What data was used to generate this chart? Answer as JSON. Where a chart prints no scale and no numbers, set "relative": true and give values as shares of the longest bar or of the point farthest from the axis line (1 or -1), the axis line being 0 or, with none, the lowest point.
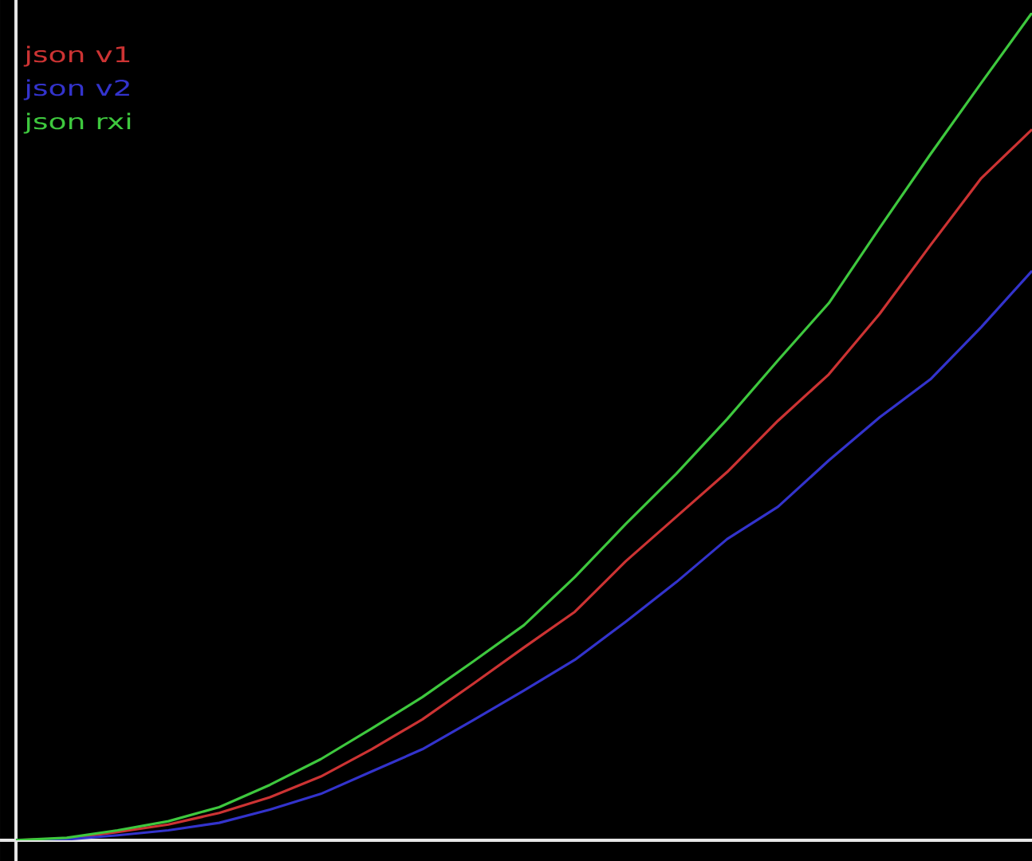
{
  "chart_data": {
    "type": "line",
    "relative": true,
    "legend": "top left",
    "categories": [
      null,
      null,
      null,
      null,
      null,
      null,
      null,
      null,
      null,
      null,
      null,
      null,
      null,
      null,
      null,
      null,
      null,
      null,
      null,
      null,
      null
    ],
    "series": [
      {
        "name": "json v1",
        "color": "#cc3333",
        "values": [
          0,
          0.002,
          0.01,
          0.019,
          0.033,
          0.052,
          0.077,
          0.11,
          0.146,
          0.189,
          0.233,
          0.276,
          0.337,
          0.391,
          0.445,
          0.507,
          0.563,
          0.636,
          0.719,
          0.8,
          0.859
        ]
      },
      {
        "name": "json v2",
        "color": "#3333cc",
        "values": [
          0,
          0.001,
          0.006,
          0.012,
          0.021,
          0.037,
          0.056,
          0.083,
          0.11,
          0.145,
          0.181,
          0.218,
          0.264,
          0.312,
          0.364,
          0.403,
          0.459,
          0.511,
          0.557,
          0.62,
          0.688
        ]
      },
      {
        "name": "json rxi",
        "color": "#3ec83e",
        "values": [
          0,
          0.003,
          0.012,
          0.023,
          0.04,
          0.067,
          0.098,
          0.135,
          0.173,
          0.216,
          0.26,
          0.318,
          0.382,
          0.443,
          0.509,
          0.58,
          0.649,
          0.74,
          0.829,
          0.915,
          1
        ]
      }
    ]
  }
}
